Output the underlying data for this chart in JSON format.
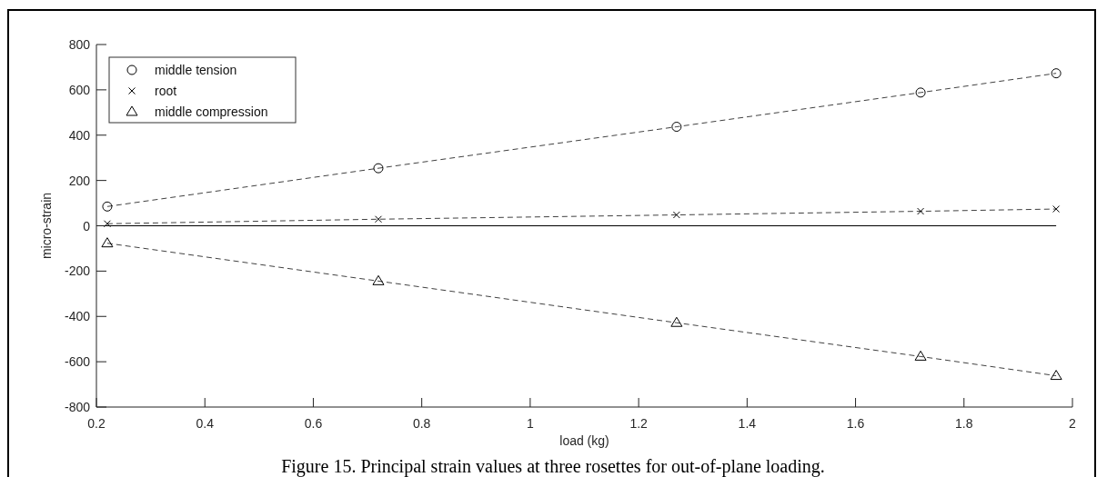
{
  "chart_data": {
    "type": "line",
    "xlabel": "load (kg)",
    "ylabel": "micro-strain",
    "annotations": [
      "Figure 15. Principal strain values at three rosettes for out-of-plane loading."
    ],
    "xlim": [
      0.2,
      2
    ],
    "xticks": [
      0.2,
      0.4,
      0.6,
      0.8,
      1,
      1.2,
      1.4,
      1.6,
      1.8,
      2
    ],
    "ylim": [
      -800,
      800
    ],
    "yticks": [
      -800,
      -600,
      -400,
      -200,
      0,
      200,
      400,
      600,
      800
    ],
    "legend": "top left",
    "line_style": "dashed",
    "grid": false,
    "ref_lines": [
      {
        "axis": "y",
        "value": 0,
        "color": "#000000",
        "line_style": "solid"
      }
    ],
    "x": [
      0.22,
      0.72,
      1.27,
      1.72,
      1.97
    ],
    "series": [
      {
        "name": "middle tension",
        "color": "#000000",
        "marker": "circle",
        "values": [
          85,
          254,
          437,
          588,
          673
        ]
      },
      {
        "name": "root",
        "color": "#000000",
        "marker": "cross",
        "values": [
          9,
          29,
          48,
          64,
          74
        ]
      },
      {
        "name": "middle compression",
        "color": "#000000",
        "marker": "triangle",
        "values": [
          -77,
          -244,
          -428,
          -577,
          -662
        ]
      }
    ]
  }
}
